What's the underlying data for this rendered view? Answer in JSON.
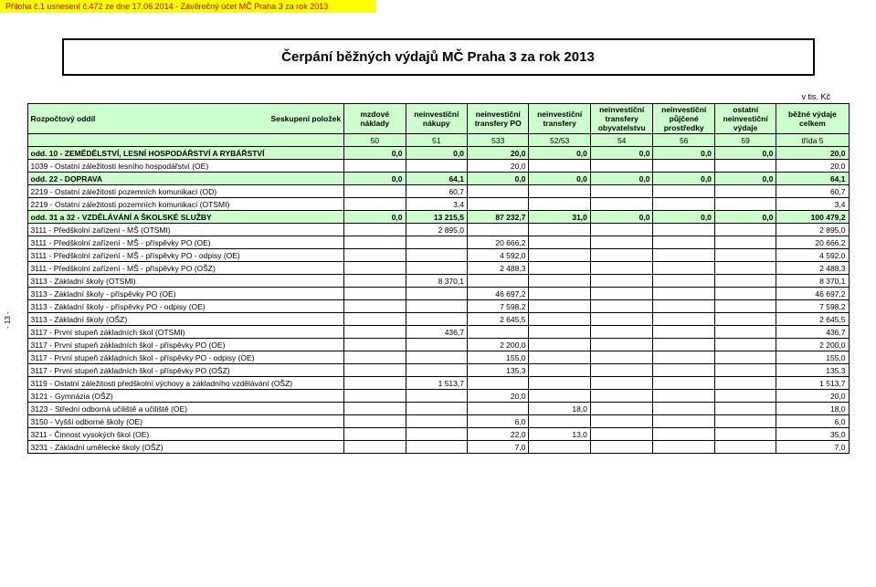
{
  "header": "Příloha č.1 usnesení č.472 ze dne 17.06.2014 - Závěrečný účet MČ Praha 3 za rok 2013",
  "title": "Čerpání běžných výdajů MČ Praha 3 za rok 2013",
  "unit": "v tis. Kč",
  "side_page": "- 13 -",
  "columns": {
    "c0a": "Rozpočtový oddíl",
    "c0b": "Seskupení položek",
    "c1": "mzdové náklady",
    "c2": "neinvestiční nákupy",
    "c3": "neinvestiční transfery PO",
    "c4": "neinvestiční transfery",
    "c5": "neinvestiční transfery obyvatelstvu",
    "c6": "neinvestiční půjčené prostředky",
    "c7": "ostatní neinvestiční výdaje",
    "c8": "běžné výdaje celkem"
  },
  "col_nums": [
    "50",
    "51",
    "533",
    "52/53",
    "54",
    "56",
    "59",
    "třída 5"
  ],
  "rows": [
    {
      "section": true,
      "name": "odd. 10 - ZEMĚDĚLSTVÍ, LESNÍ HOSPODÁŘSTVÍ A RYBÁŘSTVÍ",
      "v": [
        "0,0",
        "0,0",
        "20,0",
        "0,0",
        "0,0",
        "0,0",
        "0,0",
        "20,0"
      ]
    },
    {
      "name": "1039 - Ostatní záležitosti lesního hospodářství (OE)",
      "v": [
        "",
        "",
        "20,0",
        "",
        "",
        "",
        "",
        "20,0"
      ]
    },
    {
      "section": true,
      "name": "odd. 22 - DOPRAVA",
      "v": [
        "0,0",
        "64,1",
        "0,0",
        "0,0",
        "0,0",
        "0,0",
        "0,0",
        "64,1"
      ]
    },
    {
      "name": "2219 - Ostatní záležitosti pozemních komunikací (OD)",
      "v": [
        "",
        "60,7",
        "",
        "",
        "",
        "",
        "",
        "60,7"
      ]
    },
    {
      "name": "2219 - Ostatní záležitosti pozemních komunikací (OTSMI)",
      "v": [
        "",
        "3,4",
        "",
        "",
        "",
        "",
        "",
        "3,4"
      ]
    },
    {
      "section": true,
      "name": "odd. 31 a 32 - VZDĚLÁVÁNÍ A ŠKOLSKÉ SLUŽBY",
      "v": [
        "0,0",
        "13 215,5",
        "87 232,7",
        "31,0",
        "0,0",
        "0,0",
        "0,0",
        "100 479,2"
      ]
    },
    {
      "name": "3111 - Předškolní zařízení - MŠ (OTSMI)",
      "v": [
        "",
        "2 895,0",
        "",
        "",
        "",
        "",
        "",
        "2 895,0"
      ]
    },
    {
      "name": "3111 - Předškolní zařízení - MŠ - příspěvky PO (OE)",
      "v": [
        "",
        "",
        "20 666,2",
        "",
        "",
        "",
        "",
        "20 666,2"
      ]
    },
    {
      "name": "3111 - Předškolní zařízení - MŠ - příspěvky PO - odpisy (OE)",
      "v": [
        "",
        "",
        "4 592,0",
        "",
        "",
        "",
        "",
        "4 592,0"
      ]
    },
    {
      "name": "3111 - Předškolní zařízení - MŠ - příspěvky PO  (OŠZ)",
      "v": [
        "",
        "",
        "2 488,3",
        "",
        "",
        "",
        "",
        "2 488,3"
      ]
    },
    {
      "name": "3113 - Základní školy (OTSMI)",
      "v": [
        "",
        "8 370,1",
        "",
        "",
        "",
        "",
        "",
        "8 370,1"
      ]
    },
    {
      "name": "3113 - Základní školy - příspěvky PO (OE)",
      "v": [
        "",
        "",
        "46 697,2",
        "",
        "",
        "",
        "",
        "46 697,2"
      ]
    },
    {
      "name": "3113 - Základní školy - příspěvky PO - odpisy (OE)",
      "v": [
        "",
        "",
        "7 598,2",
        "",
        "",
        "",
        "",
        "7 598,2"
      ]
    },
    {
      "name": "3113 - Základní školy (OŠZ)",
      "v": [
        "",
        "",
        "2 645,5",
        "",
        "",
        "",
        "",
        "2 645,5"
      ]
    },
    {
      "name": "3117 - První stupeň základních škol (OTSMI)",
      "v": [
        "",
        "436,7",
        "",
        "",
        "",
        "",
        "",
        "436,7"
      ]
    },
    {
      "name": "3117 - První stupeň základních škol - příspěvky PO (OE)",
      "v": [
        "",
        "",
        "2 200,0",
        "",
        "",
        "",
        "",
        "2 200,0"
      ]
    },
    {
      "name": "3117 - První stupeň základních škol - příspěvky PO - odpisy (OE)",
      "v": [
        "",
        "",
        "155,0",
        "",
        "",
        "",
        "",
        "155,0"
      ]
    },
    {
      "name": "3117 - První stupeň základních škol - příspěvky PO (OŠZ)",
      "v": [
        "",
        "",
        "135,3",
        "",
        "",
        "",
        "",
        "135,3"
      ]
    },
    {
      "name": "3119 - Ostatní záležitosti předškolní výchovy a základního vzdělávání (OŠZ)",
      "v": [
        "",
        "1 513,7",
        "",
        "",
        "",
        "",
        "",
        "1 513,7"
      ]
    },
    {
      "name": "3121 - Gymnázia (OŠZ)",
      "v": [
        "",
        "",
        "20,0",
        "",
        "",
        "",
        "",
        "20,0"
      ]
    },
    {
      "name": "3123 - Střední odborná učiliště a učiliště (OE)",
      "v": [
        "",
        "",
        "",
        "18,0",
        "",
        "",
        "",
        "18,0"
      ]
    },
    {
      "name": "3150 - Vyšší odborné školy (OE)",
      "v": [
        "",
        "",
        "6,0",
        "",
        "",
        "",
        "",
        "6,0"
      ]
    },
    {
      "name": "3211 - Činnost vysokých škol (OE)",
      "v": [
        "",
        "",
        "22,0",
        "13,0",
        "",
        "",
        "",
        "35,0"
      ]
    },
    {
      "name": "3231 - Základní umělecké školy (OŠZ)",
      "v": [
        "",
        "",
        "7,0",
        "",
        "",
        "",
        "",
        "7,0"
      ]
    }
  ]
}
